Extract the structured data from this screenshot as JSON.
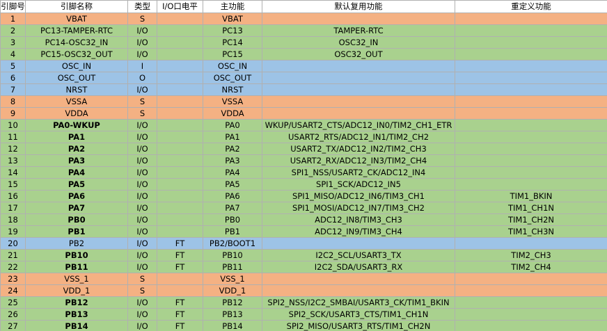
{
  "table": {
    "columns": [
      "引脚号",
      "引脚名称",
      "类型",
      "I/O口电平",
      "主功能",
      "默认复用功能",
      "重定义功能"
    ],
    "rows": [
      {
        "fill": "#f4b183",
        "bold": false,
        "cells": [
          1,
          "VBAT",
          "S",
          null,
          "VBAT",
          null,
          null
        ]
      },
      {
        "fill": "#a9d18e",
        "bold": false,
        "cells": [
          2,
          "PC13-TAMPER-RTC",
          "I/O",
          null,
          "PC13",
          "TAMPER-RTC",
          null
        ]
      },
      {
        "fill": "#a9d18e",
        "bold": false,
        "cells": [
          3,
          "PC14-OSC32_IN",
          "I/O",
          null,
          "PC14",
          "OSC32_IN",
          null
        ]
      },
      {
        "fill": "#a9d18e",
        "bold": false,
        "cells": [
          4,
          "PC15-OSC32_OUT",
          "I/O",
          null,
          "PC15",
          "OSC32_OUT",
          null
        ]
      },
      {
        "fill": "#9dc3e6",
        "bold": false,
        "cells": [
          5,
          "OSC_IN",
          "I",
          null,
          "OSC_IN",
          null,
          null
        ]
      },
      {
        "fill": "#9dc3e6",
        "bold": false,
        "cells": [
          6,
          "OSC_OUT",
          "O",
          null,
          "OSC_OUT",
          null,
          null
        ]
      },
      {
        "fill": "#9dc3e6",
        "bold": false,
        "cells": [
          7,
          "NRST",
          "I/O",
          null,
          "NRST",
          null,
          null
        ]
      },
      {
        "fill": "#f4b183",
        "bold": false,
        "cells": [
          8,
          "VSSA",
          "S",
          null,
          "VSSA",
          null,
          null
        ]
      },
      {
        "fill": "#f4b183",
        "bold": false,
        "cells": [
          9,
          "VDDA",
          "S",
          null,
          "VDDA",
          null,
          null
        ]
      },
      {
        "fill": "#a9d18e",
        "bold": true,
        "cells": [
          10,
          "PA0-WKUP",
          "I/O",
          null,
          "PA0",
          "WKUP/USART2_CTS/ADC12_IN0/TIM2_CH1_ETR",
          null
        ]
      },
      {
        "fill": "#a9d18e",
        "bold": true,
        "cells": [
          11,
          "PA1",
          "I/O",
          null,
          "PA1",
          "USART2_RTS/ADC12_IN1/TIM2_CH2",
          null
        ]
      },
      {
        "fill": "#a9d18e",
        "bold": true,
        "cells": [
          12,
          "PA2",
          "I/O",
          null,
          "PA2",
          "USART2_TX/ADC12_IN2/TIM2_CH3",
          null
        ]
      },
      {
        "fill": "#a9d18e",
        "bold": true,
        "cells": [
          13,
          "PA3",
          "I/O",
          null,
          "PA3",
          "USART2_RX/ADC12_IN3/TIM2_CH4",
          null
        ]
      },
      {
        "fill": "#a9d18e",
        "bold": true,
        "cells": [
          14,
          "PA4",
          "I/O",
          null,
          "PA4",
          "SPI1_NSS/USART2_CK/ADC12_IN4",
          null
        ]
      },
      {
        "fill": "#a9d18e",
        "bold": true,
        "cells": [
          15,
          "PA5",
          "I/O",
          null,
          "PA5",
          "SPI1_SCK/ADC12_IN5",
          null
        ]
      },
      {
        "fill": "#a9d18e",
        "bold": true,
        "cells": [
          16,
          "PA6",
          "I/O",
          null,
          "PA6",
          "SPI1_MISO/ADC12_IN6/TIM3_CH1",
          "TIM1_BKIN"
        ]
      },
      {
        "fill": "#a9d18e",
        "bold": true,
        "cells": [
          17,
          "PA7",
          "I/O",
          null,
          "PA7",
          "SPI1_MOSI/ADC12_IN7/TIM3_CH2",
          "TIM1_CH1N"
        ]
      },
      {
        "fill": "#a9d18e",
        "bold": true,
        "cells": [
          18,
          "PB0",
          "I/O",
          null,
          "PB0",
          "ADC12_IN8/TIM3_CH3",
          "TIM1_CH2N"
        ]
      },
      {
        "fill": "#a9d18e",
        "bold": true,
        "cells": [
          19,
          "PB1",
          "I/O",
          null,
          "PB1",
          "ADC12_IN9/TIM3_CH4",
          "TIM1_CH3N"
        ]
      },
      {
        "fill": "#9dc3e6",
        "bold": false,
        "cells": [
          20,
          "PB2",
          "I/O",
          "FT",
          "PB2/BOOT1",
          null,
          null
        ]
      },
      {
        "fill": "#a9d18e",
        "bold": true,
        "cells": [
          21,
          "PB10",
          "I/O",
          "FT",
          "PB10",
          "I2C2_SCL/USART3_TX",
          "TIM2_CH3"
        ]
      },
      {
        "fill": "#a9d18e",
        "bold": true,
        "cells": [
          22,
          "PB11",
          "I/O",
          "FT",
          "PB11",
          "I2C2_SDA/USART3_RX",
          "TIM2_CH4"
        ]
      },
      {
        "fill": "#f4b183",
        "bold": false,
        "cells": [
          23,
          "VSS_1",
          "S",
          null,
          "VSS_1",
          null,
          null
        ]
      },
      {
        "fill": "#f4b183",
        "bold": false,
        "cells": [
          24,
          "VDD_1",
          "S",
          null,
          "VDD_1",
          null,
          null
        ]
      },
      {
        "fill": "#a9d18e",
        "bold": true,
        "cells": [
          25,
          "PB12",
          "I/O",
          "FT",
          "PB12",
          "SPI2_NSS/I2C2_SMBAI/USART3_CK/TIM1_BKIN",
          null
        ]
      },
      {
        "fill": "#a9d18e",
        "bold": true,
        "cells": [
          26,
          "PB13",
          "I/O",
          "FT",
          "PB13",
          "SPI2_SCK/USART3_CTS/TIM1_CH1N",
          null
        ]
      },
      {
        "fill": "#a9d18e",
        "bold": true,
        "cells": [
          27,
          "PB14",
          "I/O",
          "FT",
          "PB14",
          "SPI2_MISO/USART3_RTS/TIM1_CH2N",
          null
        ]
      }
    ]
  }
}
